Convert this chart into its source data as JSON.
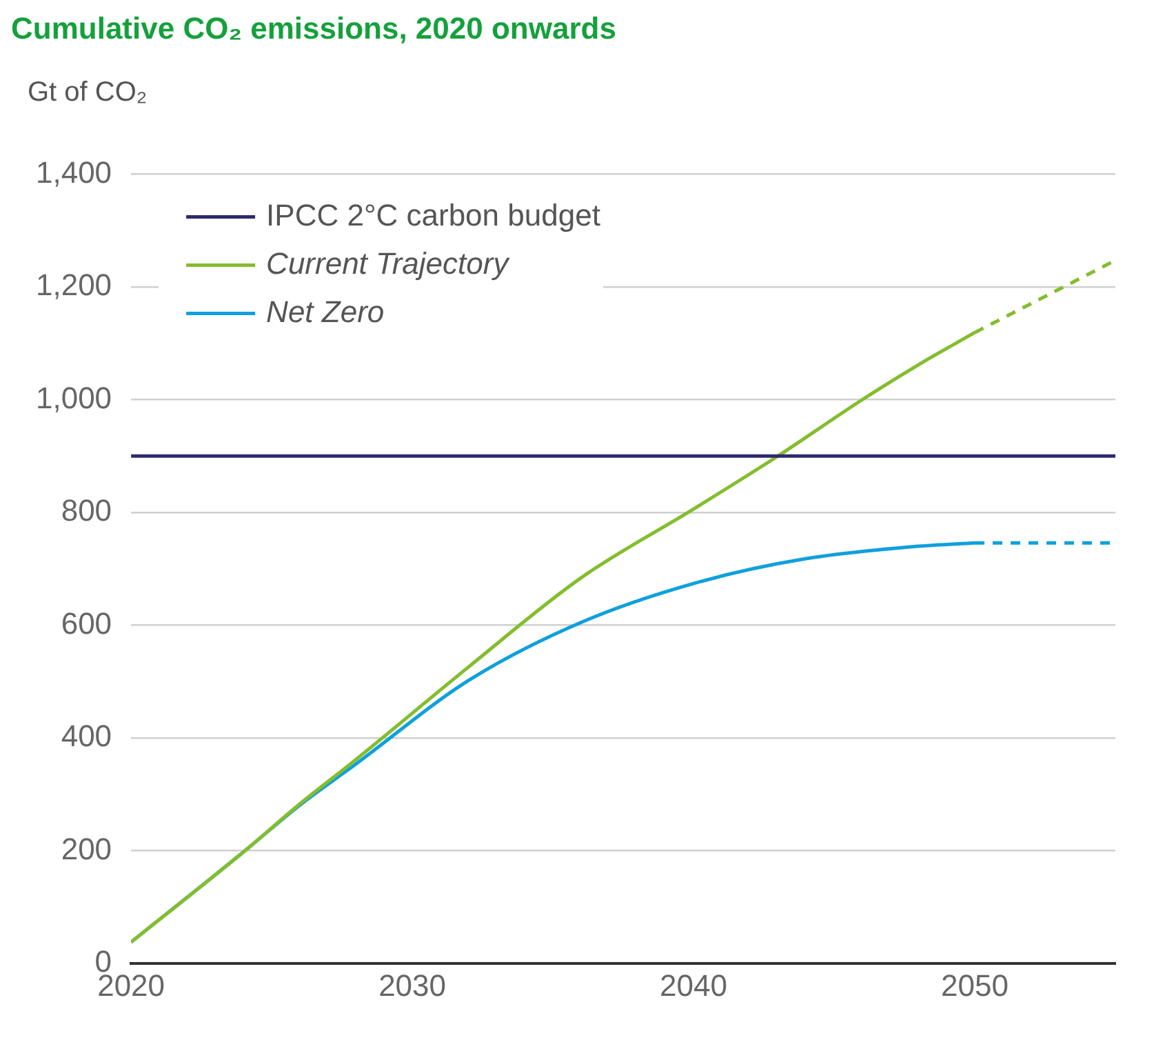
{
  "chart_data": {
    "type": "line",
    "title": "Cumulative CO₂ emissions, 2020 onwards",
    "ylabel": "Gt of CO₂",
    "series": [
      {
        "name": "IPCC 2°C carbon budget",
        "color": "#2e2a6e",
        "x": [
          2020,
          2055
        ],
        "values": [
          900,
          900
        ]
      },
      {
        "name": "Current Trajectory",
        "color": "#84bd2e",
        "x": [
          2020,
          2024,
          2026,
          2028,
          2032,
          2036,
          2040,
          2043,
          2046,
          2048,
          2050
        ],
        "values": [
          38,
          198,
          283,
          362,
          526,
          684,
          806,
          900,
          1000,
          1062,
          1119
        ]
      },
      {
        "color": "#84bd2e",
        "line_style": "dashed",
        "x": [
          2050,
          2055
        ],
        "values": [
          1119,
          1247
        ]
      },
      {
        "name": "Net Zero",
        "color": "#0fa0dc",
        "x": [
          2020,
          2024,
          2026,
          2028,
          2032,
          2036,
          2040,
          2044,
          2048,
          2050
        ],
        "values": [
          38,
          198,
          281,
          354,
          502,
          605,
          674,
          718,
          740,
          746
        ]
      },
      {
        "color": "#0fa0dc",
        "line_style": "dashed",
        "x": [
          2050,
          2055
        ],
        "values": [
          746,
          746
        ]
      }
    ],
    "xlim": [
      2020,
      2055
    ],
    "xticks": [
      2020,
      2030,
      2040,
      2050
    ],
    "ylim": [
      0,
      1400
    ],
    "yticks": [
      0,
      200,
      400,
      600,
      800,
      {
        "value": 1000,
        "label": "1,000"
      },
      {
        "value": 1200,
        "label": "1,200"
      },
      {
        "value": 1400,
        "label": "1,400"
      }
    ],
    "grid": "y",
    "legend": "top left",
    "line_style": "solid",
    "marker": "none"
  }
}
